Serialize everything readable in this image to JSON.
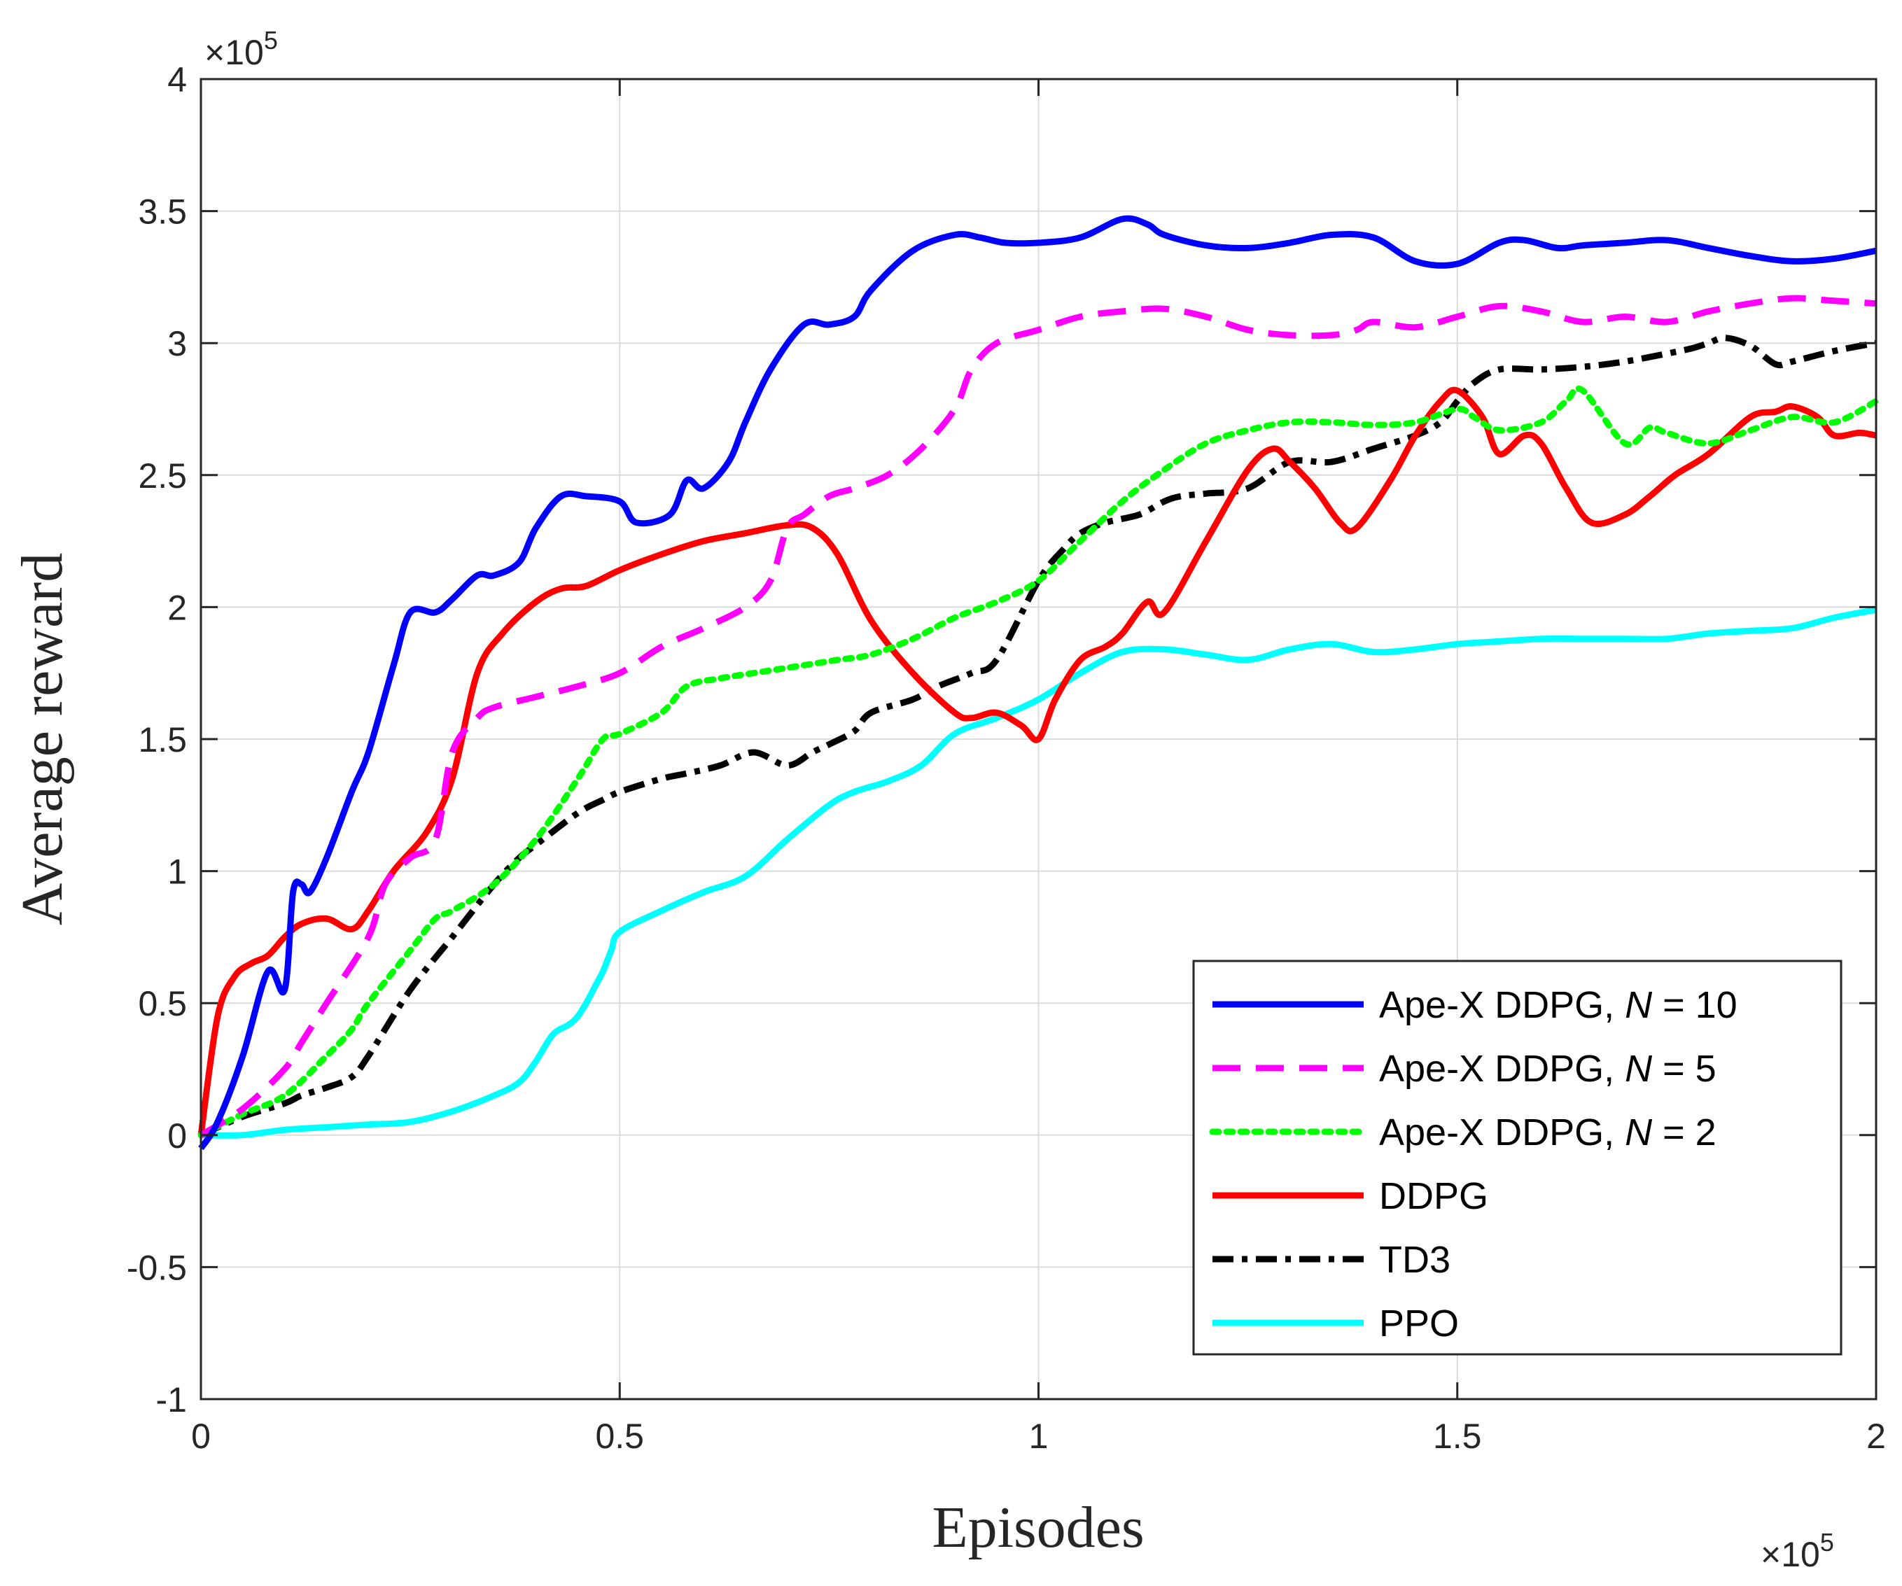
{
  "chart_data": {
    "type": "line",
    "title": "",
    "xlabel": "Episodes",
    "ylabel": "Average reward",
    "x_multiplier": "×10^5",
    "y_multiplier": "×10^5",
    "x_multiplier_base": "×10",
    "x_multiplier_exp": "5",
    "y_multiplier_base": "×10",
    "y_multiplier_exp": "5",
    "xlim": [
      0,
      2
    ],
    "ylim": [
      -1,
      4
    ],
    "xticks": [
      0,
      0.5,
      1,
      1.5,
      2
    ],
    "xtick_labels": [
      "0",
      "0.5",
      "1",
      "1.5",
      "2"
    ],
    "yticks": [
      -1,
      -0.5,
      0,
      0.5,
      1,
      1.5,
      2,
      2.5,
      3,
      3.5,
      4
    ],
    "ytick_labels": [
      "-1",
      "-0.5",
      "0",
      "0.5",
      "1",
      "1.5",
      "2",
      "2.5",
      "3",
      "3.5",
      "4"
    ],
    "grid": true,
    "legend_position": "bottom-right",
    "series": [
      {
        "name": "Ape-X DDPG, N = 10",
        "legend_main": "Ape-X DDPG, ",
        "legend_var": "N",
        "legend_tail": " = 10",
        "color": "#0000ff",
        "dash": "solid",
        "x": [
          0,
          0.02,
          0.05,
          0.08,
          0.1,
          0.11,
          0.12,
          0.13,
          0.15,
          0.18,
          0.2,
          0.23,
          0.25,
          0.28,
          0.3,
          0.33,
          0.35,
          0.38,
          0.4,
          0.43,
          0.46,
          0.5,
          0.52,
          0.56,
          0.58,
          0.6,
          0.63,
          0.65,
          0.68,
          0.72,
          0.75,
          0.78,
          0.8,
          0.85,
          0.9,
          0.93,
          0.96,
          1.0,
          1.05,
          1.1,
          1.13,
          1.15,
          1.2,
          1.25,
          1.3,
          1.35,
          1.4,
          1.45,
          1.5,
          1.55,
          1.58,
          1.62,
          1.65,
          1.7,
          1.75,
          1.8,
          1.85,
          1.9,
          1.95,
          2.0
        ],
        "values": [
          -0.05,
          0.05,
          0.3,
          0.62,
          0.55,
          0.92,
          0.95,
          0.92,
          1.05,
          1.3,
          1.45,
          1.78,
          1.98,
          1.98,
          2.03,
          2.12,
          2.12,
          2.17,
          2.3,
          2.42,
          2.42,
          2.4,
          2.32,
          2.35,
          2.48,
          2.45,
          2.55,
          2.7,
          2.9,
          3.07,
          3.07,
          3.1,
          3.2,
          3.35,
          3.41,
          3.4,
          3.38,
          3.38,
          3.4,
          3.47,
          3.45,
          3.41,
          3.37,
          3.36,
          3.38,
          3.41,
          3.4,
          3.31,
          3.3,
          3.38,
          3.39,
          3.36,
          3.37,
          3.38,
          3.39,
          3.36,
          3.33,
          3.31,
          3.32,
          3.35
        ]
      },
      {
        "name": "Ape-X DDPG, N = 5",
        "legend_main": "Ape-X DDPG, ",
        "legend_var": "N",
        "legend_tail": " = 5",
        "color": "#ff00ff",
        "dash": "long",
        "x": [
          0,
          0.05,
          0.1,
          0.12,
          0.15,
          0.2,
          0.22,
          0.25,
          0.28,
          0.3,
          0.33,
          0.35,
          0.4,
          0.45,
          0.5,
          0.55,
          0.6,
          0.65,
          0.68,
          0.7,
          0.72,
          0.75,
          0.78,
          0.82,
          0.86,
          0.9,
          0.92,
          0.95,
          1.0,
          1.05,
          1.1,
          1.15,
          1.2,
          1.25,
          1.3,
          1.35,
          1.38,
          1.4,
          1.45,
          1.5,
          1.55,
          1.6,
          1.65,
          1.7,
          1.75,
          1.8,
          1.85,
          1.9,
          1.95,
          2.0
        ],
        "values": [
          0,
          0.1,
          0.25,
          0.35,
          0.5,
          0.75,
          0.95,
          1.05,
          1.12,
          1.45,
          1.58,
          1.62,
          1.66,
          1.7,
          1.75,
          1.85,
          1.92,
          2.0,
          2.1,
          2.3,
          2.35,
          2.42,
          2.45,
          2.5,
          2.6,
          2.75,
          2.9,
          3.0,
          3.05,
          3.1,
          3.12,
          3.13,
          3.1,
          3.05,
          3.03,
          3.03,
          3.05,
          3.08,
          3.06,
          3.1,
          3.14,
          3.12,
          3.08,
          3.1,
          3.08,
          3.12,
          3.15,
          3.17,
          3.16,
          3.15
        ]
      },
      {
        "name": "Ape-X DDPG, N = 2",
        "legend_main": "Ape-X DDPG, ",
        "legend_var": "N",
        "legend_tail": " = 2",
        "color": "#00ff00",
        "dash": "dot",
        "x": [
          0,
          0.05,
          0.1,
          0.15,
          0.18,
          0.2,
          0.25,
          0.28,
          0.3,
          0.35,
          0.4,
          0.45,
          0.48,
          0.5,
          0.55,
          0.58,
          0.62,
          0.68,
          0.72,
          0.76,
          0.8,
          0.85,
          0.9,
          0.95,
          1.0,
          1.05,
          1.1,
          1.15,
          1.2,
          1.25,
          1.3,
          1.35,
          1.4,
          1.45,
          1.5,
          1.52,
          1.55,
          1.6,
          1.63,
          1.65,
          1.7,
          1.73,
          1.75,
          1.8,
          1.85,
          1.9,
          1.95,
          2.0
        ],
        "values": [
          0,
          0.08,
          0.15,
          0.3,
          0.4,
          0.5,
          0.7,
          0.82,
          0.85,
          0.95,
          1.12,
          1.35,
          1.5,
          1.52,
          1.6,
          1.7,
          1.73,
          1.76,
          1.78,
          1.8,
          1.82,
          1.88,
          1.96,
          2.02,
          2.1,
          2.25,
          2.4,
          2.52,
          2.62,
          2.67,
          2.7,
          2.7,
          2.69,
          2.7,
          2.75,
          2.72,
          2.67,
          2.7,
          2.78,
          2.82,
          2.62,
          2.68,
          2.66,
          2.62,
          2.67,
          2.72,
          2.7,
          2.78
        ]
      },
      {
        "name": "DDPG",
        "legend_main": "DDPG",
        "legend_var": "",
        "legend_tail": "",
        "color": "#ff0000",
        "dash": "solid",
        "x": [
          0,
          0.02,
          0.04,
          0.06,
          0.08,
          0.1,
          0.12,
          0.15,
          0.18,
          0.2,
          0.23,
          0.27,
          0.3,
          0.33,
          0.36,
          0.4,
          0.43,
          0.46,
          0.5,
          0.55,
          0.6,
          0.65,
          0.7,
          0.73,
          0.76,
          0.8,
          0.85,
          0.9,
          0.92,
          0.95,
          0.98,
          1.0,
          1.02,
          1.05,
          1.08,
          1.1,
          1.13,
          1.15,
          1.2,
          1.25,
          1.28,
          1.3,
          1.33,
          1.36,
          1.38,
          1.42,
          1.45,
          1.48,
          1.5,
          1.53,
          1.55,
          1.58,
          1.6,
          1.63,
          1.66,
          1.7,
          1.73,
          1.76,
          1.8,
          1.85,
          1.88,
          1.9,
          1.93,
          1.95,
          1.98,
          2.0
        ],
        "values": [
          0,
          0.45,
          0.6,
          0.65,
          0.68,
          0.75,
          0.8,
          0.82,
          0.78,
          0.85,
          1.0,
          1.15,
          1.35,
          1.75,
          1.9,
          2.02,
          2.07,
          2.08,
          2.14,
          2.2,
          2.25,
          2.28,
          2.31,
          2.3,
          2.2,
          1.95,
          1.75,
          1.6,
          1.58,
          1.6,
          1.55,
          1.5,
          1.65,
          1.8,
          1.85,
          1.9,
          2.02,
          1.98,
          2.25,
          2.52,
          2.6,
          2.55,
          2.45,
          2.32,
          2.3,
          2.48,
          2.65,
          2.78,
          2.82,
          2.72,
          2.58,
          2.65,
          2.62,
          2.45,
          2.32,
          2.35,
          2.42,
          2.5,
          2.58,
          2.72,
          2.74,
          2.76,
          2.72,
          2.65,
          2.66,
          2.65
        ]
      },
      {
        "name": "TD3",
        "legend_main": "TD3",
        "legend_var": "",
        "legend_tail": "",
        "color": "#000000",
        "dash": "dashdot",
        "x": [
          0,
          0.05,
          0.1,
          0.12,
          0.15,
          0.18,
          0.2,
          0.25,
          0.3,
          0.35,
          0.38,
          0.4,
          0.45,
          0.48,
          0.5,
          0.55,
          0.58,
          0.62,
          0.66,
          0.7,
          0.73,
          0.75,
          0.78,
          0.8,
          0.85,
          0.88,
          0.92,
          0.95,
          1.0,
          1.03,
          1.05,
          1.08,
          1.12,
          1.15,
          1.17,
          1.2,
          1.25,
          1.3,
          1.35,
          1.4,
          1.45,
          1.48,
          1.5,
          1.52,
          1.55,
          1.6,
          1.65,
          1.7,
          1.75,
          1.78,
          1.8,
          1.82,
          1.85,
          1.88,
          1.9,
          1.95,
          2.0
        ],
        "values": [
          0,
          0.07,
          0.12,
          0.15,
          0.18,
          0.22,
          0.3,
          0.55,
          0.75,
          0.95,
          1.05,
          1.1,
          1.22,
          1.27,
          1.3,
          1.35,
          1.37,
          1.4,
          1.45,
          1.4,
          1.45,
          1.48,
          1.53,
          1.6,
          1.65,
          1.7,
          1.75,
          1.8,
          2.1,
          2.22,
          2.28,
          2.32,
          2.35,
          2.4,
          2.42,
          2.43,
          2.45,
          2.55,
          2.55,
          2.6,
          2.65,
          2.7,
          2.78,
          2.85,
          2.9,
          2.9,
          2.91,
          2.93,
          2.96,
          2.98,
          3.0,
          3.02,
          2.99,
          2.92,
          2.93,
          2.97,
          3.0
        ]
      },
      {
        "name": "PPO",
        "legend_main": "PPO",
        "legend_var": "",
        "legend_tail": "",
        "color": "#00ffff",
        "dash": "solid",
        "x": [
          0,
          0.05,
          0.1,
          0.15,
          0.2,
          0.25,
          0.3,
          0.35,
          0.38,
          0.4,
          0.42,
          0.44,
          0.45,
          0.46,
          0.47,
          0.48,
          0.49,
          0.5,
          0.55,
          0.6,
          0.65,
          0.7,
          0.75,
          0.78,
          0.82,
          0.86,
          0.9,
          0.95,
          1.0,
          1.05,
          1.1,
          1.15,
          1.2,
          1.25,
          1.3,
          1.35,
          1.4,
          1.45,
          1.5,
          1.55,
          1.6,
          1.65,
          1.7,
          1.75,
          1.8,
          1.85,
          1.9,
          1.95,
          2.0
        ],
        "values": [
          0,
          0,
          0.02,
          0.03,
          0.04,
          0.05,
          0.09,
          0.15,
          0.2,
          0.28,
          0.38,
          0.42,
          0.45,
          0.5,
          0.56,
          0.62,
          0.7,
          0.77,
          0.85,
          0.92,
          0.98,
          1.12,
          1.25,
          1.3,
          1.34,
          1.4,
          1.52,
          1.58,
          1.65,
          1.75,
          1.83,
          1.84,
          1.82,
          1.8,
          1.84,
          1.86,
          1.83,
          1.84,
          1.86,
          1.87,
          1.88,
          1.88,
          1.88,
          1.88,
          1.9,
          1.91,
          1.92,
          1.96,
          1.99
        ]
      }
    ]
  }
}
